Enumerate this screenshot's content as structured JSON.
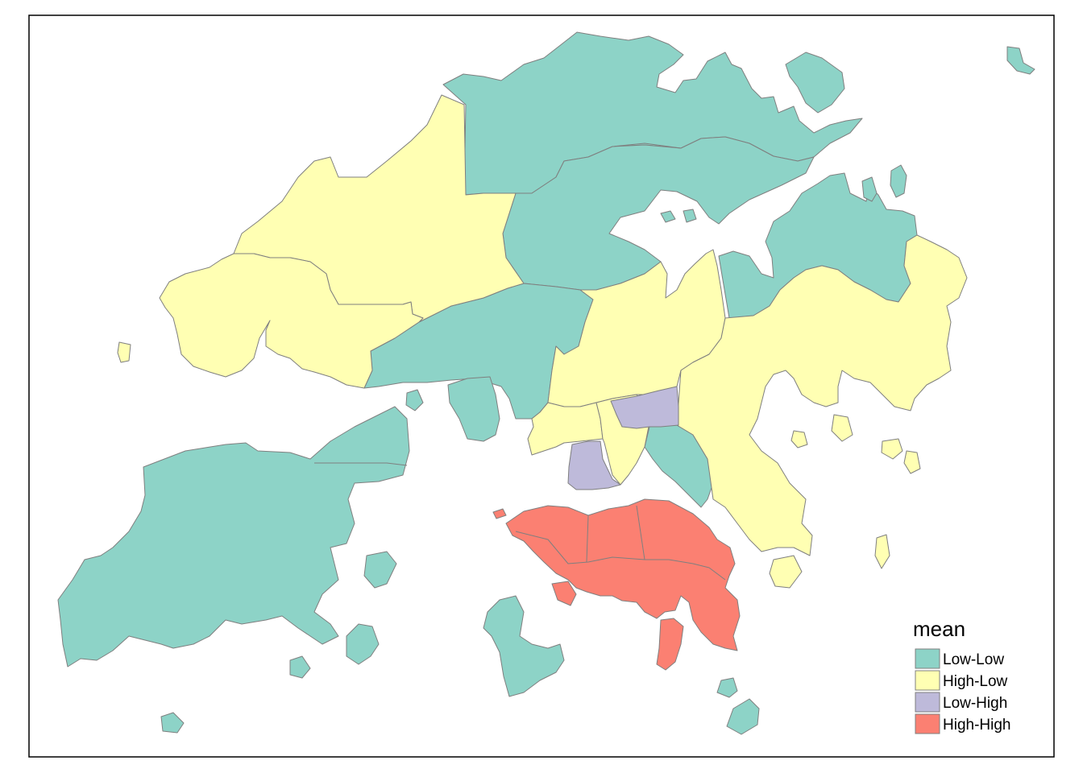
{
  "legend": {
    "title": "mean",
    "items": [
      {
        "key": "low_low",
        "label": "Low-Low",
        "color": "#8DD3C7"
      },
      {
        "key": "high_low",
        "label": "High-Low",
        "color": "#FFFFB3"
      },
      {
        "key": "low_high",
        "label": "Low-High",
        "color": "#BEBADA"
      },
      {
        "key": "high_high",
        "label": "High-High",
        "color": "#FB8072"
      }
    ]
  }
}
